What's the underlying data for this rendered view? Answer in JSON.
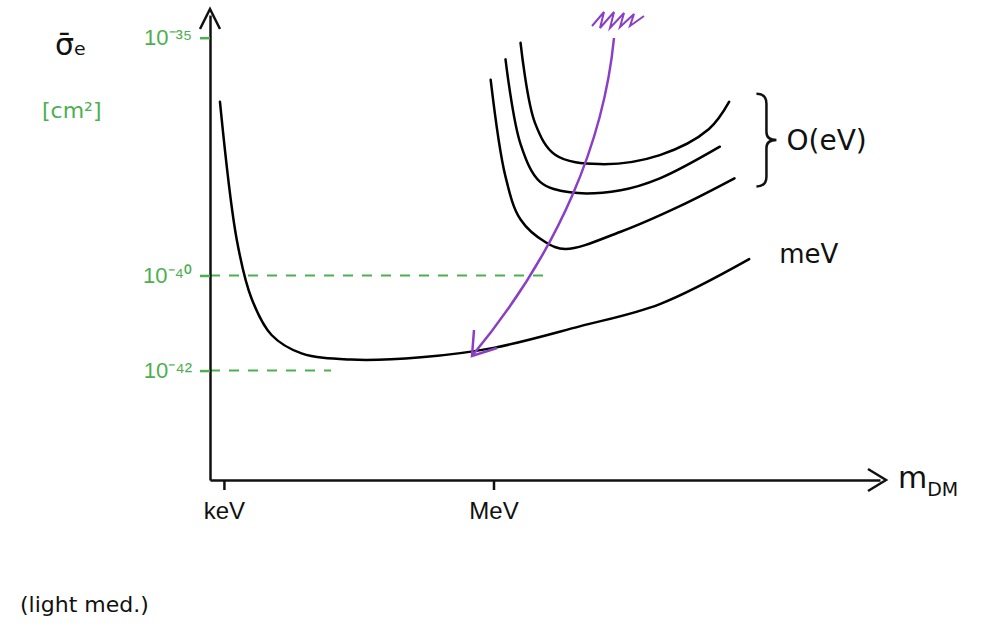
{
  "chart_data": {
    "type": "line",
    "log": true,
    "x_label": "mDM",
    "y_label": "σ̄ₑ [cm²]",
    "xlim": [
      700,
      20000000000
    ],
    "ylim": [
      5e-45,
      3e-35
    ],
    "xticks": [
      {
        "value": 1000,
        "label": "keV"
      },
      {
        "value": 1000000,
        "label": "MeV"
      }
    ],
    "yticks": [
      {
        "value": 1e-35,
        "label": "10⁻³⁵"
      },
      {
        "value": 1e-40,
        "label": "10⁻⁴⁰"
      },
      {
        "value": 1e-42,
        "label": "10⁻⁴²"
      }
    ],
    "series": [
      {
        "color": "#000000",
        "x": [
          930000,
          1360000,
          2000000,
          3800000,
          6300000,
          26000000,
          120000000,
          480000000
        ],
        "values": [
          1.3e-36,
          1.2e-38,
          1.5e-39,
          5e-40,
          3.6e-40,
          8.3e-40,
          2.9e-39,
          1.1e-38
        ]
      },
      {
        "color": "#000000",
        "x": [
          1360000,
          2000000,
          3300000,
          7100000,
          26000000,
          71000000,
          330000000
        ],
        "values": [
          3.5e-36,
          5.8e-38,
          9.3e-39,
          5.6e-39,
          6.2e-39,
          1.1e-38,
          5.1e-38
        ]
      },
      {
        "color": "#000000",
        "x": [
          2000000,
          2900000,
          4900000,
          15000000,
          71000000,
          250000000,
          420000000
        ],
        "values": [
          7.8e-36,
          1.6e-37,
          3.4e-38,
          2.2e-38,
          3.4e-38,
          1.2e-37,
          4.5e-37
        ]
      },
      {
        "color": "#000000",
        "x": [
          903,
          1393,
          2040,
          3390,
          7310,
          26000,
          156000,
          1000000,
          9100000,
          71000000,
          700000000
        ],
        "values": [
          4.5e-37,
          5.5e-40,
          3.2e-41,
          5.6e-42,
          2.3e-42,
          1.7e-42,
          1.9e-42,
          3e-42,
          8.5e-42,
          2.5e-41,
          2.2e-40
        ]
      }
    ],
    "annotations": [
      "O(eV)",
      "meV",
      "(light med.)"
    ]
  }
}
